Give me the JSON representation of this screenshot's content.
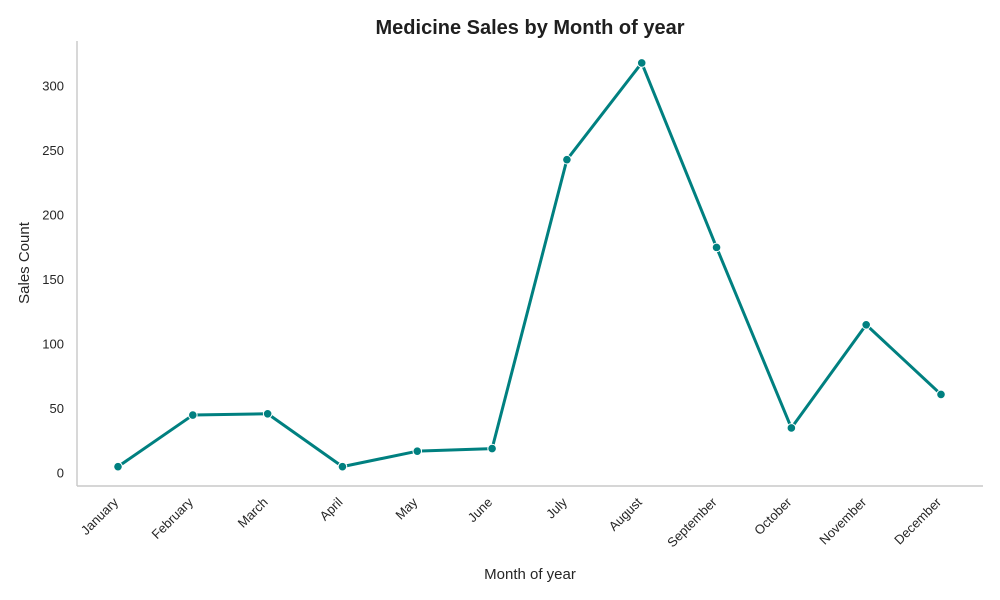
{
  "chart_data": {
    "type": "line",
    "title": "Medicine Sales by Month of year",
    "xlabel": "Month of year",
    "ylabel": "Sales Count",
    "categories": [
      "January",
      "February",
      "March",
      "April",
      "May",
      "June",
      "July",
      "August",
      "September",
      "October",
      "November",
      "December"
    ],
    "series": [
      {
        "values": [
          5,
          45,
          46,
          5,
          17,
          19,
          243,
          318,
          175,
          35,
          115,
          61
        ],
        "color": "#008080"
      }
    ],
    "ylim": [
      -10,
      335
    ],
    "yticks": [
      0,
      50,
      100,
      150,
      200,
      250,
      300
    ],
    "grid": false,
    "legend": "none"
  }
}
